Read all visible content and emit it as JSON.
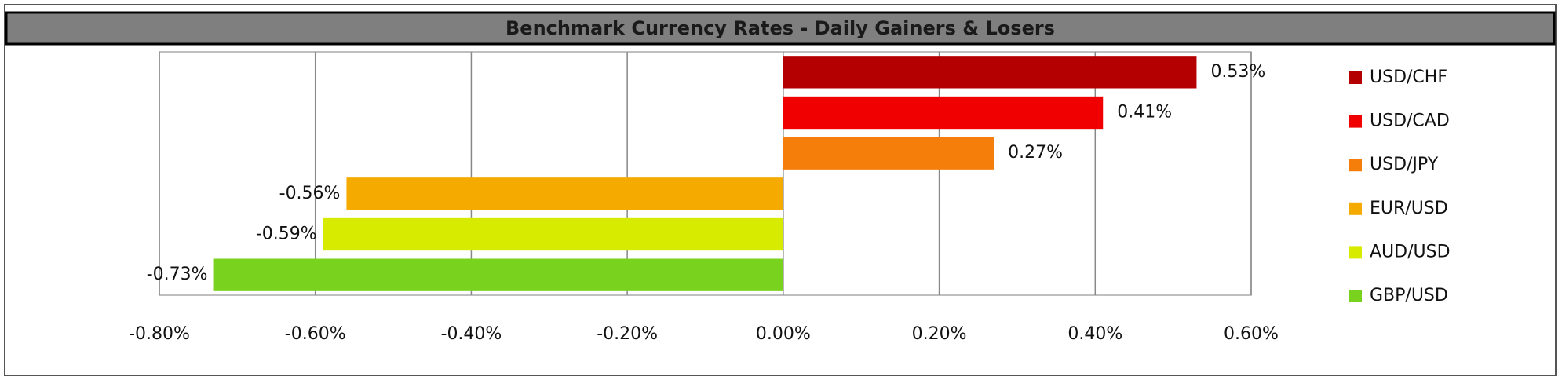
{
  "chart_data": {
    "type": "bar",
    "orientation": "horizontal",
    "title": "Benchmark Currency Rates - Daily Gainers & Losers",
    "categories": [
      "USD/CHF",
      "USD/CAD",
      "USD/JPY",
      "EUR/USD",
      "AUD/USD",
      "GBP/USD"
    ],
    "values": [
      0.53,
      0.41,
      0.27,
      -0.56,
      -0.59,
      -0.73
    ],
    "value_labels": [
      "0.53%",
      "0.41%",
      "0.27%",
      "-0.56%",
      "-0.59%",
      "-0.73%"
    ],
    "colors": [
      "#b40000",
      "#f00000",
      "#f57d0a",
      "#f5aa00",
      "#d7eb00",
      "#78d21e"
    ],
    "xlim": [
      -0.8,
      0.6
    ],
    "xticks": [
      {
        "value": -0.8,
        "label": "-0.80%"
      },
      {
        "value": -0.6,
        "label": "-0.60%"
      },
      {
        "value": -0.4,
        "label": "-0.40%"
      },
      {
        "value": -0.2,
        "label": "-0.20%"
      },
      {
        "value": 0,
        "label": "0.00%"
      },
      {
        "value": 0.2,
        "label": "0.20%"
      },
      {
        "value": 0.4,
        "label": "0.40%"
      },
      {
        "value": 0.6,
        "label": "0.60%"
      }
    ],
    "grid": true,
    "legend": "right"
  }
}
